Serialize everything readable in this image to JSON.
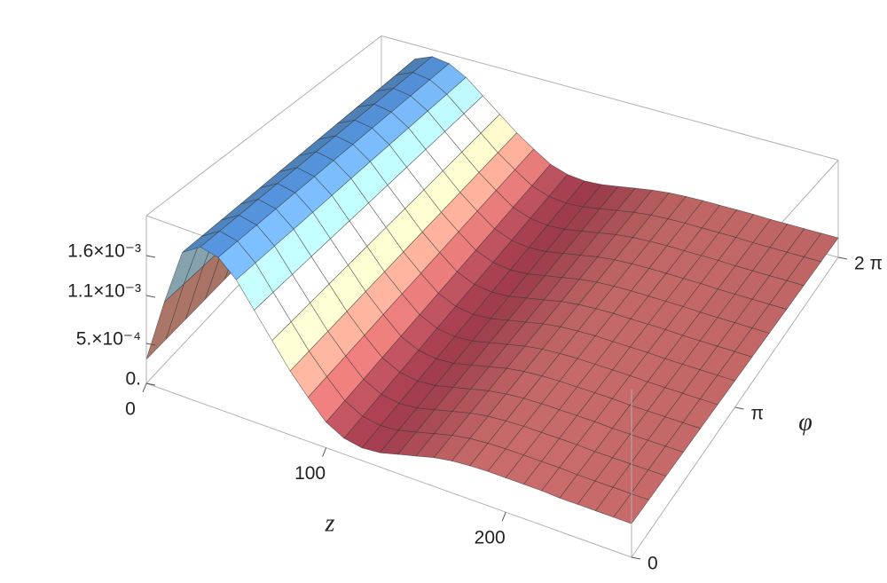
{
  "chart_data": {
    "type": "surface",
    "x_label": "z",
    "y_label": "φ",
    "x": [
      0,
      10,
      20,
      30,
      40,
      50,
      60,
      70,
      80,
      90,
      100,
      110,
      120,
      130,
      140,
      150,
      160,
      170,
      180,
      190,
      200,
      210,
      220,
      230,
      240,
      250,
      260,
      270
    ],
    "values": [
      0.0003,
      0.0011,
      0.0018,
      0.00195,
      0.0019,
      0.0017,
      0.0014,
      0.0011,
      0.0008,
      0.00055,
      0.00032,
      0.0002,
      0.00016,
      0.00018,
      0.00024,
      0.0003,
      0.00036,
      0.0004,
      0.00042,
      0.00043,
      0.00043,
      0.00043,
      0.00043,
      0.00042,
      0.00042,
      0.00042,
      0.00042,
      0.00042
    ],
    "colors": [
      "#a63d50",
      "#e08a7c",
      "#f3e6bb",
      "#a9d8f0",
      "#4d8bd4"
    ],
    "xlim": [
      0,
      270
    ],
    "xticks": [
      0,
      100,
      200
    ],
    "ylim": [
      0,
      6.28319
    ],
    "yticks": [
      0,
      {
        "value": 3.14159,
        "label": "π"
      },
      {
        "value": 6.28319,
        "label": "2 π"
      }
    ],
    "zlim": [
      0,
      0.0021
    ],
    "zticks": [
      {
        "value": 0,
        "label": "0."
      },
      {
        "value": 0.0005,
        "label": "5.×10⁻⁴"
      },
      {
        "value": 0.0011,
        "label": "1.1×10⁻³"
      },
      {
        "value": 0.0016,
        "label": "1.6×10⁻³"
      }
    ]
  }
}
